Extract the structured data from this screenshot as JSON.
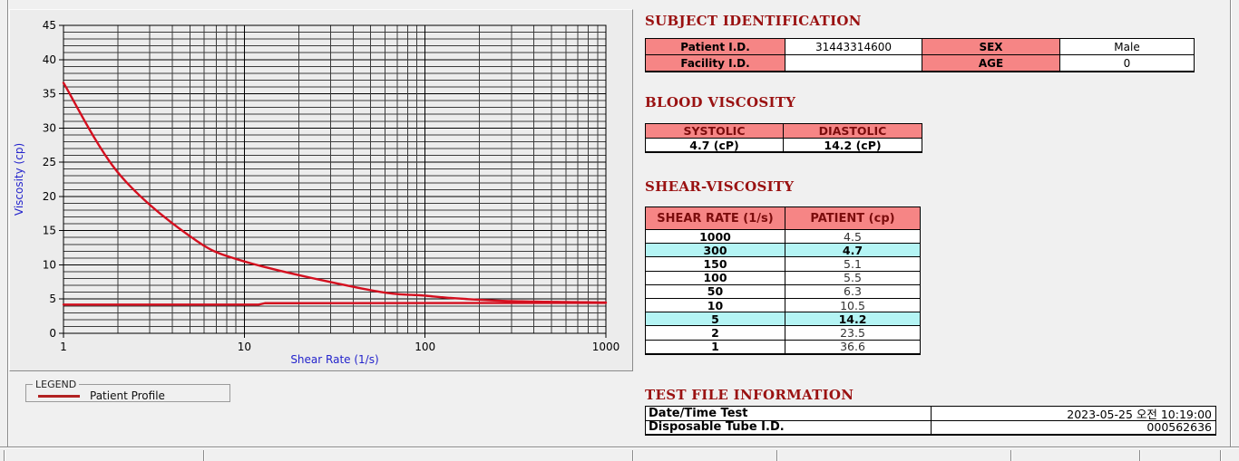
{
  "legend": {
    "box_label": "LEGEND",
    "entries": [
      {
        "label": "Patient Profile",
        "color": "#b22222"
      }
    ]
  },
  "subject_identification": {
    "title": "SUBJECT IDENTIFICATION",
    "patient_id": {
      "label": "Patient I.D.",
      "value": "31443314600"
    },
    "sex": {
      "label": "SEX",
      "value": "Male"
    },
    "facility_id": {
      "label": "Facility I.D.",
      "value": ""
    },
    "age": {
      "label": "AGE",
      "value": "0"
    }
  },
  "blood_viscosity": {
    "title": "BLOOD VISCOSITY",
    "columns": [
      "SYSTOLIC",
      "DIASTOLIC"
    ],
    "values": [
      "4.7 (cP)",
      "14.2 (cP)"
    ]
  },
  "shear_viscosity": {
    "title": "SHEAR-VISCOSITY",
    "columns": [
      "SHEAR RATE (1/s)",
      "PATIENT (cp)"
    ],
    "rows": [
      {
        "shear_rate": "1000",
        "patient": "4.5",
        "highlight": false
      },
      {
        "shear_rate": "300",
        "patient": "4.7",
        "highlight": true
      },
      {
        "shear_rate": "150",
        "patient": "5.1",
        "highlight": false
      },
      {
        "shear_rate": "100",
        "patient": "5.5",
        "highlight": false
      },
      {
        "shear_rate": "50",
        "patient": "6.3",
        "highlight": false
      },
      {
        "shear_rate": "10",
        "patient": "10.5",
        "highlight": false
      },
      {
        "shear_rate": "5",
        "patient": "14.2",
        "highlight": true
      },
      {
        "shear_rate": "2",
        "patient": "23.5",
        "highlight": false
      },
      {
        "shear_rate": "1",
        "patient": "36.6",
        "highlight": false
      }
    ]
  },
  "test_file_information": {
    "title": "TEST FILE INFORMATION",
    "rows": [
      {
        "label": "Date/Time Test",
        "value": "2023-05-25  오전 10:19:00"
      },
      {
        "label": "Disposable Tube I.D.",
        "value": "000562636"
      }
    ]
  },
  "chart_data": {
    "type": "line",
    "x_scale": "log",
    "xlabel": "Shear Rate (1/s)",
    "ylabel": "Viscosity (cp)",
    "xlim": [
      1,
      1000
    ],
    "ylim": [
      0,
      45
    ],
    "x_ticks": [
      1,
      10,
      100,
      1000
    ],
    "y_ticks": [
      0,
      5,
      10,
      15,
      20,
      25,
      30,
      35,
      40,
      45
    ],
    "grid": true,
    "axis_label_color": "#2424cc",
    "legend_position": "below-left",
    "series": [
      {
        "name": "baseline_trace",
        "color": "#d40f1f",
        "smooth": false,
        "x": [
          1,
          12,
          13,
          1000
        ],
        "y": [
          4.2,
          4.2,
          4.4,
          4.45
        ]
      },
      {
        "name": "Patient Profile",
        "color": "#d40f1f",
        "smooth": true,
        "x": [
          1,
          2,
          5,
          10,
          50,
          100,
          150,
          300,
          1000
        ],
        "y": [
          36.6,
          23.5,
          14.2,
          10.5,
          6.3,
          5.5,
          5.1,
          4.7,
          4.5
        ]
      }
    ]
  }
}
